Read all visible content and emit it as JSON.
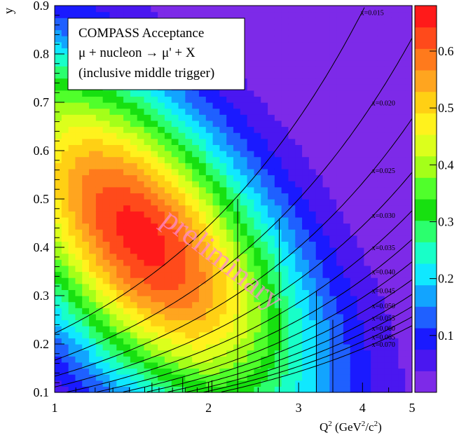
{
  "chart_data": {
    "type": "heatmap",
    "title_box": {
      "line1": "COMPASS Acceptance",
      "line2": "μ + nucleon → μ' + X",
      "line3": "(inclusive middle trigger)"
    },
    "watermark": "preliminary",
    "xlabel": "Q² (GeV²/c²)",
    "xlabel_parts": {
      "q": "Q",
      "sup1": "2",
      "mid": " (GeV",
      "sup2": "2",
      "mid2": "/c",
      "sup3": "2",
      "end": ")"
    },
    "ylabel": "y",
    "x_scale": "log",
    "xlim": [
      1,
      5
    ],
    "ylim": [
      0.1,
      0.9
    ],
    "x_ticks": [
      {
        "value": 1,
        "label": "1"
      },
      {
        "value": 2,
        "label": "2"
      },
      {
        "value": 3,
        "label": "3"
      },
      {
        "value": 4,
        "label": "4"
      },
      {
        "value": 5,
        "label": "5"
      }
    ],
    "y_ticks": [
      {
        "value": 0.1,
        "label": "0.1"
      },
      {
        "value": 0.2,
        "label": "0.2"
      },
      {
        "value": 0.3,
        "label": "0.3"
      },
      {
        "value": 0.4,
        "label": "0.4"
      },
      {
        "value": 0.5,
        "label": "0.5"
      },
      {
        "value": 0.6,
        "label": "0.6"
      },
      {
        "value": 0.7,
        "label": "0.7"
      },
      {
        "value": 0.8,
        "label": "0.8"
      },
      {
        "value": 0.9,
        "label": "0.9"
      }
    ],
    "acceptance_peak": {
      "logq2": 0.17,
      "y": 0.42,
      "max": 0.66
    },
    "colorbar": {
      "range": [
        0.0,
        0.68
      ],
      "ticks": [
        {
          "value": 0.1,
          "label": "0.1"
        },
        {
          "value": 0.2,
          "label": "0.2"
        },
        {
          "value": 0.3,
          "label": "0.3"
        },
        {
          "value": 0.4,
          "label": "0.4"
        },
        {
          "value": 0.5,
          "label": "0.5"
        },
        {
          "value": 0.6,
          "label": "0.6"
        }
      ],
      "colors": [
        "#7d2ae8",
        "#4a17f0",
        "#1a1aff",
        "#1f60ff",
        "#12a4ff",
        "#10e8ff",
        "#18ffc8",
        "#2bff6e",
        "#17e010",
        "#50ff2b",
        "#a4ff19",
        "#dcff1c",
        "#fff21d",
        "#ffd014",
        "#ffa51f",
        "#ff7a1c",
        "#ff4a1b",
        "#ff1a1a"
      ]
    },
    "x_lines": [
      {
        "label": "x=0.015",
        "x": 0.015
      },
      {
        "label": "x=0.020",
        "x": 0.02
      },
      {
        "label": "x=0.025",
        "x": 0.025
      },
      {
        "label": "x=0.030",
        "x": 0.03
      },
      {
        "label": "x=0.035",
        "x": 0.035
      },
      {
        "label": "x=0.040",
        "x": 0.04
      },
      {
        "label": "x=0.045",
        "x": 0.045
      },
      {
        "label": "x=0.050",
        "x": 0.05
      },
      {
        "label": "x=0.055",
        "x": 0.055
      },
      {
        "label": "x=0.060",
        "x": 0.06
      },
      {
        "label": "x=0.065",
        "x": 0.065
      },
      {
        "label": "x=0.070",
        "x": 0.07
      }
    ],
    "bin_boundaries": [
      {
        "q2": 1.28,
        "y_max": 0.12
      },
      {
        "q2": 1.55,
        "y_max": 0.12
      },
      {
        "q2": 1.78,
        "y_max": 0.13
      },
      {
        "q2": 2.03,
        "y_max": 0.125
      },
      {
        "q2": 2.28,
        "y_max": 0.5
      },
      {
        "q2": 2.75,
        "y_max": 0.46
      },
      {
        "q2": 3.25,
        "y_max": 0.31
      },
      {
        "q2": 3.5,
        "y_max": 0.25
      }
    ]
  }
}
